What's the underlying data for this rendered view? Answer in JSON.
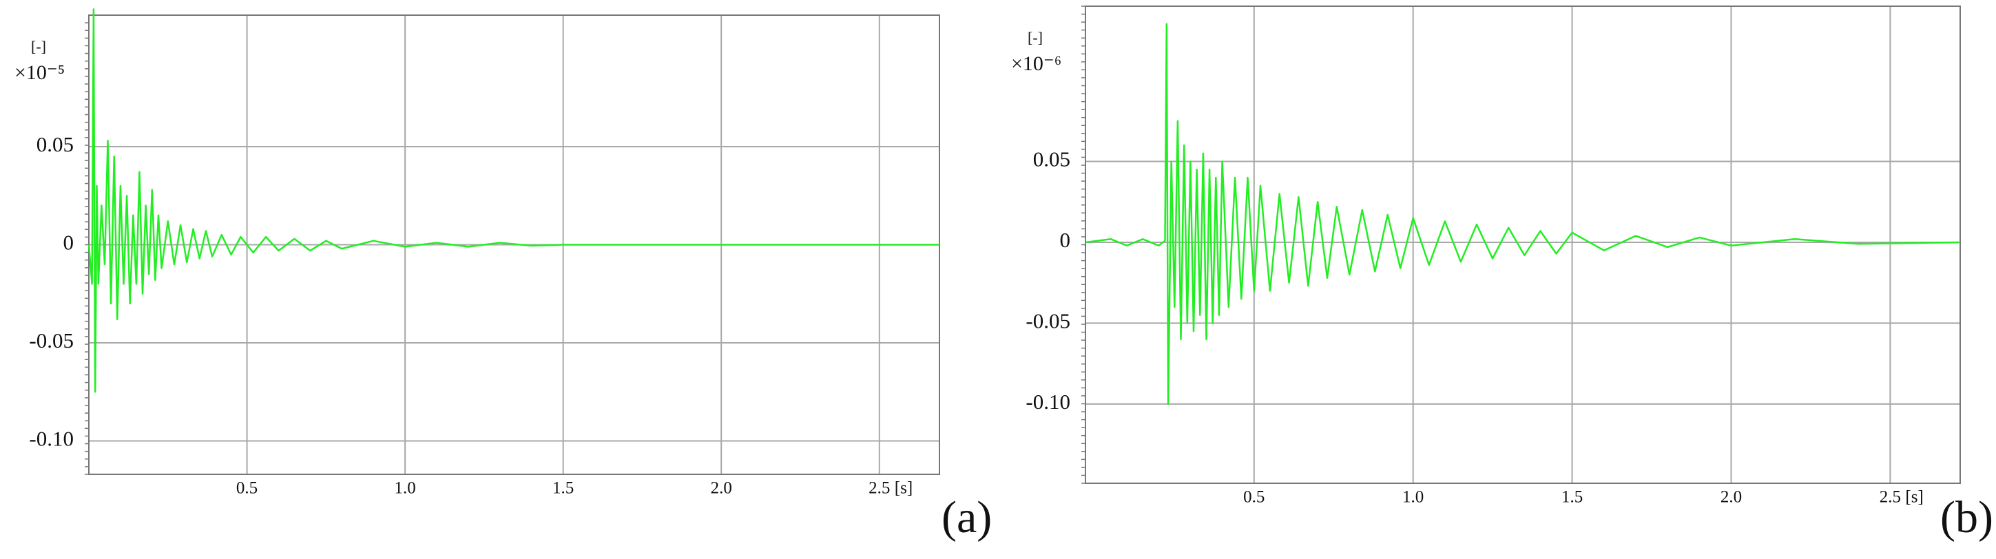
{
  "chart_data": [
    {
      "type": "line",
      "panel_label": "(a)",
      "y_unit": "[-]",
      "y_multiplier": "×10⁻⁵",
      "x_unit": "[s]",
      "color": "#22ee22",
      "xlim": [
        0,
        2.69
      ],
      "ylim": [
        -0.117,
        0.117
      ],
      "xticks": [
        0.5,
        {
          "value": 1,
          "label": "1.0"
        },
        1.5,
        {
          "value": 2,
          "label": "2.0"
        },
        2.5
      ],
      "yticks": [
        {
          "value": -0.1,
          "label": "-0.10"
        },
        -0.05,
        0,
        0.05
      ],
      "grid": true,
      "x": [
        0,
        0.01,
        0.015,
        0.02,
        0.025,
        0.03,
        0.04,
        0.05,
        0.06,
        0.07,
        0.08,
        0.09,
        0.1,
        0.11,
        0.12,
        0.13,
        0.14,
        0.15,
        0.16,
        0.17,
        0.18,
        0.19,
        0.2,
        0.21,
        0.22,
        0.23,
        0.25,
        0.27,
        0.29,
        0.31,
        0.33,
        0.35,
        0.37,
        0.39,
        0.42,
        0.45,
        0.48,
        0.52,
        0.56,
        0.6,
        0.65,
        0.7,
        0.75,
        0.8,
        0.9,
        1.0,
        1.1,
        1.2,
        1.3,
        1.4,
        1.5,
        2.0,
        2.69
      ],
      "values": [
        0,
        -0.02,
        0.12,
        -0.075,
        0.03,
        -0.02,
        0.02,
        -0.01,
        0.053,
        -0.03,
        0.045,
        -0.038,
        0.03,
        -0.02,
        0.025,
        -0.03,
        0.015,
        -0.02,
        0.037,
        -0.025,
        0.02,
        -0.015,
        0.028,
        -0.018,
        0.015,
        -0.012,
        0.012,
        -0.01,
        0.01,
        -0.009,
        0.008,
        -0.007,
        0.007,
        -0.006,
        0.005,
        -0.005,
        0.004,
        -0.004,
        0.004,
        -0.003,
        0.003,
        -0.003,
        0.002,
        -0.002,
        0.002,
        -0.001,
        0.001,
        -0.001,
        0.001,
        -0.0005,
        0,
        0,
        0
      ]
    },
    {
      "type": "line",
      "panel_label": "(b)",
      "y_unit": "[-]",
      "y_multiplier": "×10⁻⁶",
      "x_unit": "[s]",
      "color": "#22ee22",
      "xlim": [
        -0.03,
        2.72
      ],
      "ylim": [
        -0.149,
        0.146
      ],
      "xticks": [
        0.5,
        {
          "value": 1,
          "label": "1.0"
        },
        1.5,
        {
          "value": 2,
          "label": "2.0"
        },
        2.5
      ],
      "yticks": [
        {
          "value": -0.1,
          "label": "-0.10"
        },
        -0.05,
        0,
        0.05
      ],
      "grid": true,
      "x": [
        -0.03,
        0.05,
        0.1,
        0.15,
        0.2,
        0.22,
        0.225,
        0.23,
        0.24,
        0.25,
        0.26,
        0.27,
        0.28,
        0.29,
        0.3,
        0.31,
        0.32,
        0.33,
        0.34,
        0.35,
        0.36,
        0.37,
        0.38,
        0.39,
        0.4,
        0.42,
        0.44,
        0.46,
        0.48,
        0.5,
        0.52,
        0.55,
        0.58,
        0.61,
        0.64,
        0.67,
        0.7,
        0.73,
        0.76,
        0.8,
        0.84,
        0.88,
        0.92,
        0.96,
        1.0,
        1.05,
        1.1,
        1.15,
        1.2,
        1.25,
        1.3,
        1.35,
        1.4,
        1.45,
        1.5,
        1.6,
        1.7,
        1.8,
        1.9,
        2.0,
        2.2,
        2.4,
        2.72
      ],
      "values": [
        0,
        0.002,
        -0.002,
        0.002,
        -0.002,
        0.001,
        0.135,
        -0.1,
        0.05,
        -0.04,
        0.075,
        -0.06,
        0.06,
        -0.05,
        0.05,
        -0.055,
        0.045,
        -0.045,
        0.055,
        -0.06,
        0.045,
        -0.05,
        0.04,
        -0.045,
        0.05,
        -0.04,
        0.04,
        -0.035,
        0.04,
        -0.03,
        0.035,
        -0.03,
        0.03,
        -0.025,
        0.028,
        -0.027,
        0.025,
        -0.022,
        0.022,
        -0.02,
        0.02,
        -0.018,
        0.017,
        -0.016,
        0.015,
        -0.014,
        0.013,
        -0.012,
        0.011,
        -0.01,
        0.009,
        -0.008,
        0.007,
        -0.007,
        0.006,
        -0.005,
        0.004,
        -0.003,
        0.003,
        -0.002,
        0.002,
        -0.001,
        0
      ]
    }
  ]
}
